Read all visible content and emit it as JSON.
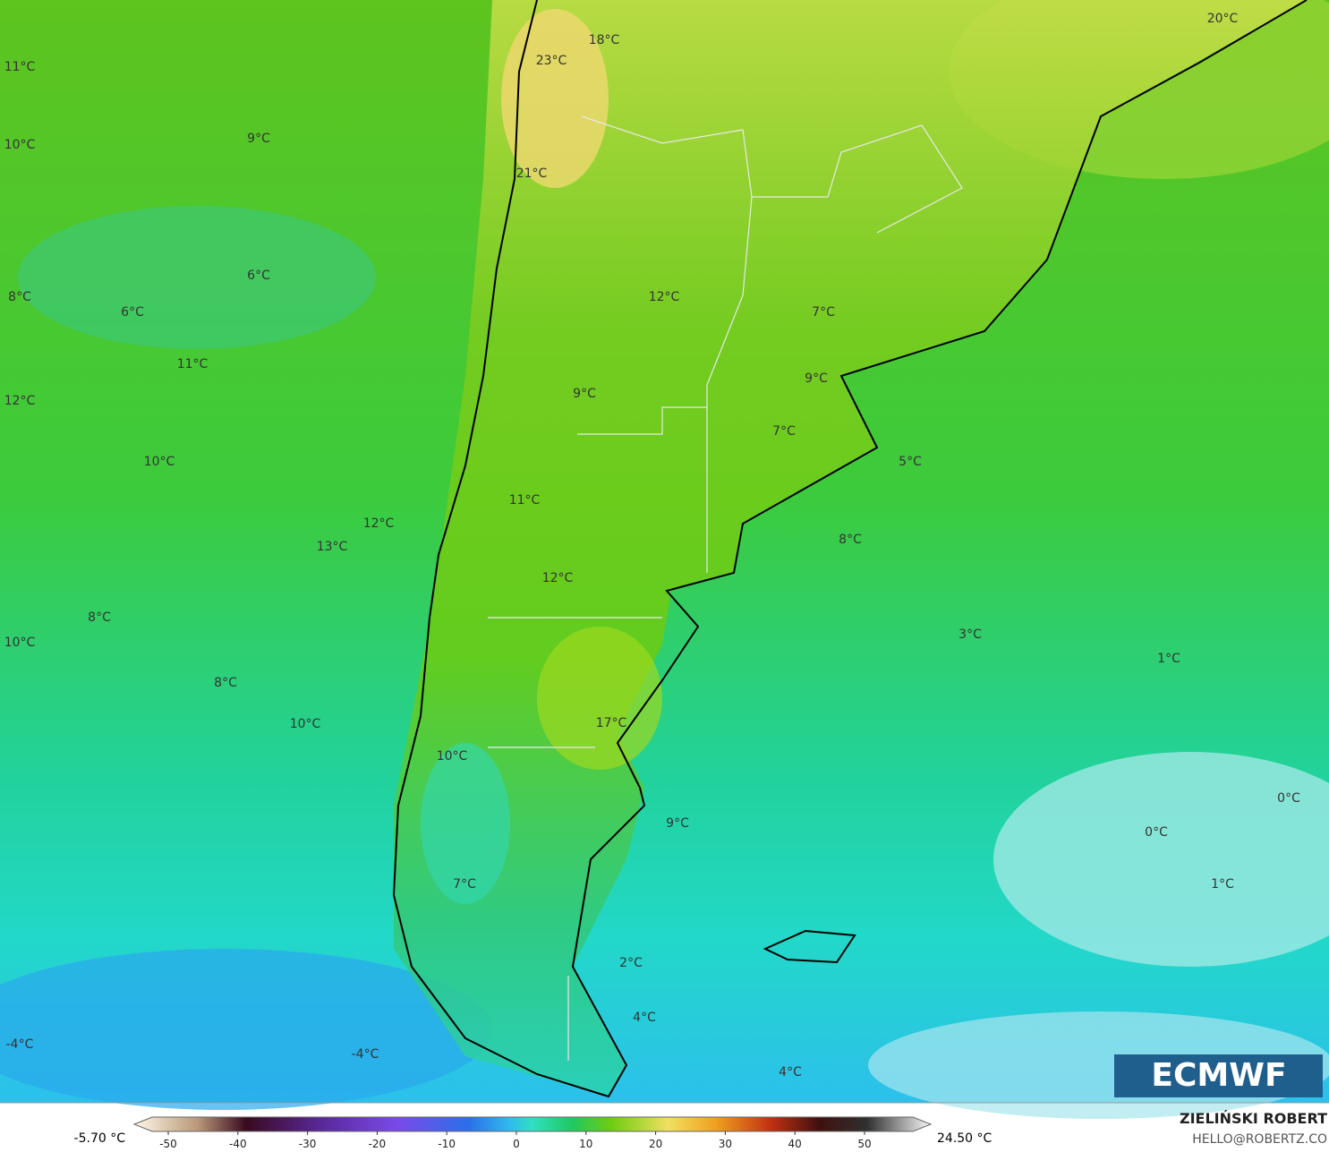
{
  "map": {
    "labels": [
      "11°C",
      "10°C",
      "9°C",
      "23°C",
      "18°C",
      "20°C",
      "21°C",
      "8°C",
      "6°C",
      "6°C",
      "12°C",
      "11°C",
      "7°C",
      "12°C",
      "9°C",
      "9°C",
      "7°C",
      "10°C",
      "5°C",
      "11°C",
      "12°C",
      "13°C",
      "8°C",
      "12°C",
      "8°C",
      "3°C",
      "10°C",
      "1°C",
      "8°C",
      "10°C",
      "17°C",
      "10°C",
      "9°C",
      "0°C",
      "0°C",
      "1°C",
      "7°C",
      "2°C",
      "4°C",
      "-4°C",
      "-4°C",
      "4°C"
    ],
    "logo": "ECMWF"
  },
  "colorbar": {
    "min_label": "-5.70 °C",
    "max_label": "24.50 °C",
    "ticks": [
      -50,
      -40,
      -30,
      -20,
      -10,
      0,
      10,
      20,
      30,
      40,
      50
    ]
  },
  "credit": {
    "name": "ZIELIŃSKI ROBERT",
    "email": "HELLO@ROBERTZ.CO"
  }
}
